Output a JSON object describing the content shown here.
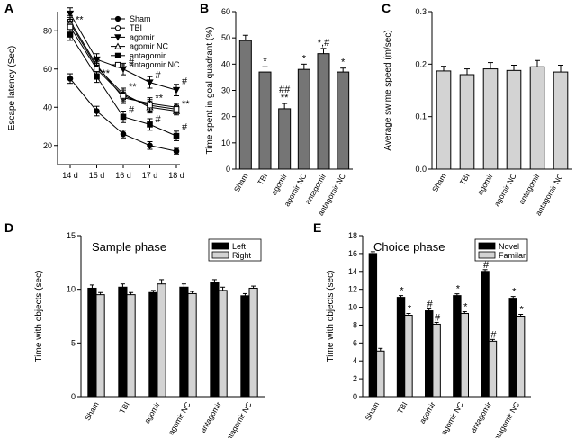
{
  "chart_data": [
    {
      "id": "A",
      "type": "line",
      "panel_label": "A",
      "ylabel": "Escape latency (Sec)",
      "xlabel": "",
      "categories": [
        "14 d",
        "15 d",
        "16 d",
        "17 d",
        "18 d"
      ],
      "ylim": [
        10,
        90
      ],
      "yticks": [
        20,
        40,
        60,
        80
      ],
      "series": [
        {
          "name": "Sham",
          "marker": "circle-filled",
          "values": [
            55,
            38,
            26,
            20,
            17
          ],
          "err": [
            2.5,
            2.5,
            2,
            2,
            1.5
          ]
        },
        {
          "name": "TBI",
          "marker": "circle-open",
          "values": [
            85,
            62,
            45,
            42,
            40
          ],
          "err": [
            3,
            3,
            3,
            3,
            2
          ]
        },
        {
          "name": "agomir",
          "marker": "triangle-down-filled",
          "values": [
            89,
            65,
            60,
            53,
            49
          ],
          "err": [
            3,
            3,
            3,
            3,
            3
          ]
        },
        {
          "name": "agomir NC",
          "marker": "triangle-up-open",
          "values": [
            84,
            61,
            47,
            40,
            38
          ],
          "err": [
            3,
            3,
            3,
            3,
            2
          ]
        },
        {
          "name": "antagomir",
          "marker": "square-filled",
          "values": [
            78,
            56,
            35,
            31,
            25
          ],
          "err": [
            3,
            3,
            3,
            3,
            2.5
          ]
        },
        {
          "name": "antagomir NC",
          "marker": "square-open",
          "values": [
            82,
            60,
            46,
            41,
            39
          ],
          "err": [
            3,
            3,
            3,
            3,
            2
          ]
        }
      ],
      "annotations": [
        {
          "text": "**",
          "x": "14 d",
          "y": 86
        },
        {
          "text": "**",
          "x": "15 d",
          "y": 58
        },
        {
          "text": "#",
          "x": "16 d",
          "y": 64
        },
        {
          "text": "**",
          "x": "16 d",
          "y": 51
        },
        {
          "text": "#",
          "x": "16 d",
          "y": 39
        },
        {
          "text": "#",
          "x": "17 d",
          "y": 57
        },
        {
          "text": "**",
          "x": "17 d",
          "y": 45
        },
        {
          "text": "#",
          "x": "17 d",
          "y": 34
        },
        {
          "text": "#",
          "x": "18 d",
          "y": 54
        },
        {
          "text": "**",
          "x": "18 d",
          "y": 42
        },
        {
          "text": "#",
          "x": "18 d",
          "y": 30
        }
      ]
    },
    {
      "id": "B",
      "type": "bar",
      "panel_label": "B",
      "ylabel": "Time spent in goal quadrant (%)",
      "categories": [
        "Sham",
        "TBI",
        "agomir",
        "agomir NC",
        "antagomir",
        "antagomir NC"
      ],
      "values": [
        49,
        37,
        23,
        38,
        44,
        37
      ],
      "err": [
        2,
        2,
        2,
        2,
        2,
        1.5
      ],
      "ylim": [
        0,
        60
      ],
      "yticks": [
        0,
        10,
        20,
        30,
        40,
        50,
        60
      ],
      "color": "#757575",
      "annotations": [
        {
          "category": "TBI",
          "lines": [
            "*"
          ]
        },
        {
          "category": "agomir",
          "lines": [
            "##",
            "**"
          ]
        },
        {
          "category": "agomir NC",
          "lines": [
            "*"
          ]
        },
        {
          "category": "antagomir",
          "lines": [
            "*,#"
          ]
        },
        {
          "category": "antagomir NC",
          "lines": [
            "*"
          ]
        }
      ]
    },
    {
      "id": "C",
      "type": "bar",
      "panel_label": "C",
      "ylabel": "Average swime speed (m/sec)",
      "categories": [
        "Sham",
        "TBI",
        "agomir",
        "agomir NC",
        "antagomir",
        "antagomir NC"
      ],
      "values": [
        0.187,
        0.18,
        0.191,
        0.188,
        0.195,
        0.185
      ],
      "err": [
        0.009,
        0.011,
        0.012,
        0.01,
        0.012,
        0.013
      ],
      "ylim": [
        0,
        0.3
      ],
      "yticks": [
        "0.0",
        "0.1",
        "0.2",
        "0.3"
      ],
      "color": "#d3d3d3"
    },
    {
      "id": "D",
      "type": "bar",
      "panel_label": "D",
      "inset_title": "Sample phase",
      "ylabel": "Time with objects (sec)",
      "categories": [
        "Sham",
        "TBI",
        "agomir",
        "agomir NC",
        "antagomir",
        "antagomir NC"
      ],
      "ylim": [
        0,
        15
      ],
      "yticks": [
        0,
        5,
        10,
        15
      ],
      "legend_position": "top-right",
      "series": [
        {
          "name": "Left",
          "color": "#000000",
          "values": [
            10.1,
            10.2,
            9.7,
            10.2,
            10.6,
            9.4
          ],
          "err": [
            0.3,
            0.3,
            0.2,
            0.3,
            0.3,
            0.2
          ]
        },
        {
          "name": "Right",
          "color": "#d3d3d3",
          "values": [
            9.5,
            9.5,
            10.5,
            9.6,
            9.9,
            10.1
          ],
          "err": [
            0.2,
            0.2,
            0.4,
            0.2,
            0.3,
            0.2
          ]
        }
      ]
    },
    {
      "id": "E",
      "type": "bar",
      "panel_label": "E",
      "inset_title": "Choice phase",
      "ylabel": "Time with objects (sec)",
      "categories": [
        "Sham",
        "TBI",
        "agomir",
        "agomir NC",
        "antagomir",
        "antagomir NC"
      ],
      "ylim": [
        0,
        18
      ],
      "yticks": [
        0,
        2,
        4,
        6,
        8,
        10,
        12,
        14,
        16,
        18
      ],
      "legend_position": "top-right",
      "series": [
        {
          "name": "Novel",
          "color": "#000000",
          "values": [
            16.0,
            11.1,
            9.6,
            11.3,
            14.0,
            11.0
          ],
          "err": [
            0.2,
            0.2,
            0.2,
            0.2,
            0.2,
            0.2
          ],
          "marks": [
            "",
            "*",
            "#",
            "*",
            "#",
            "*"
          ]
        },
        {
          "name": "Familar",
          "color": "#d3d3d3",
          "values": [
            5.1,
            9.1,
            8.1,
            9.3,
            6.2,
            9.0
          ],
          "err": [
            0.3,
            0.2,
            0.2,
            0.2,
            0.2,
            0.2
          ],
          "marks": [
            "",
            "*",
            "#",
            "*",
            "#",
            "*"
          ]
        }
      ]
    }
  ]
}
